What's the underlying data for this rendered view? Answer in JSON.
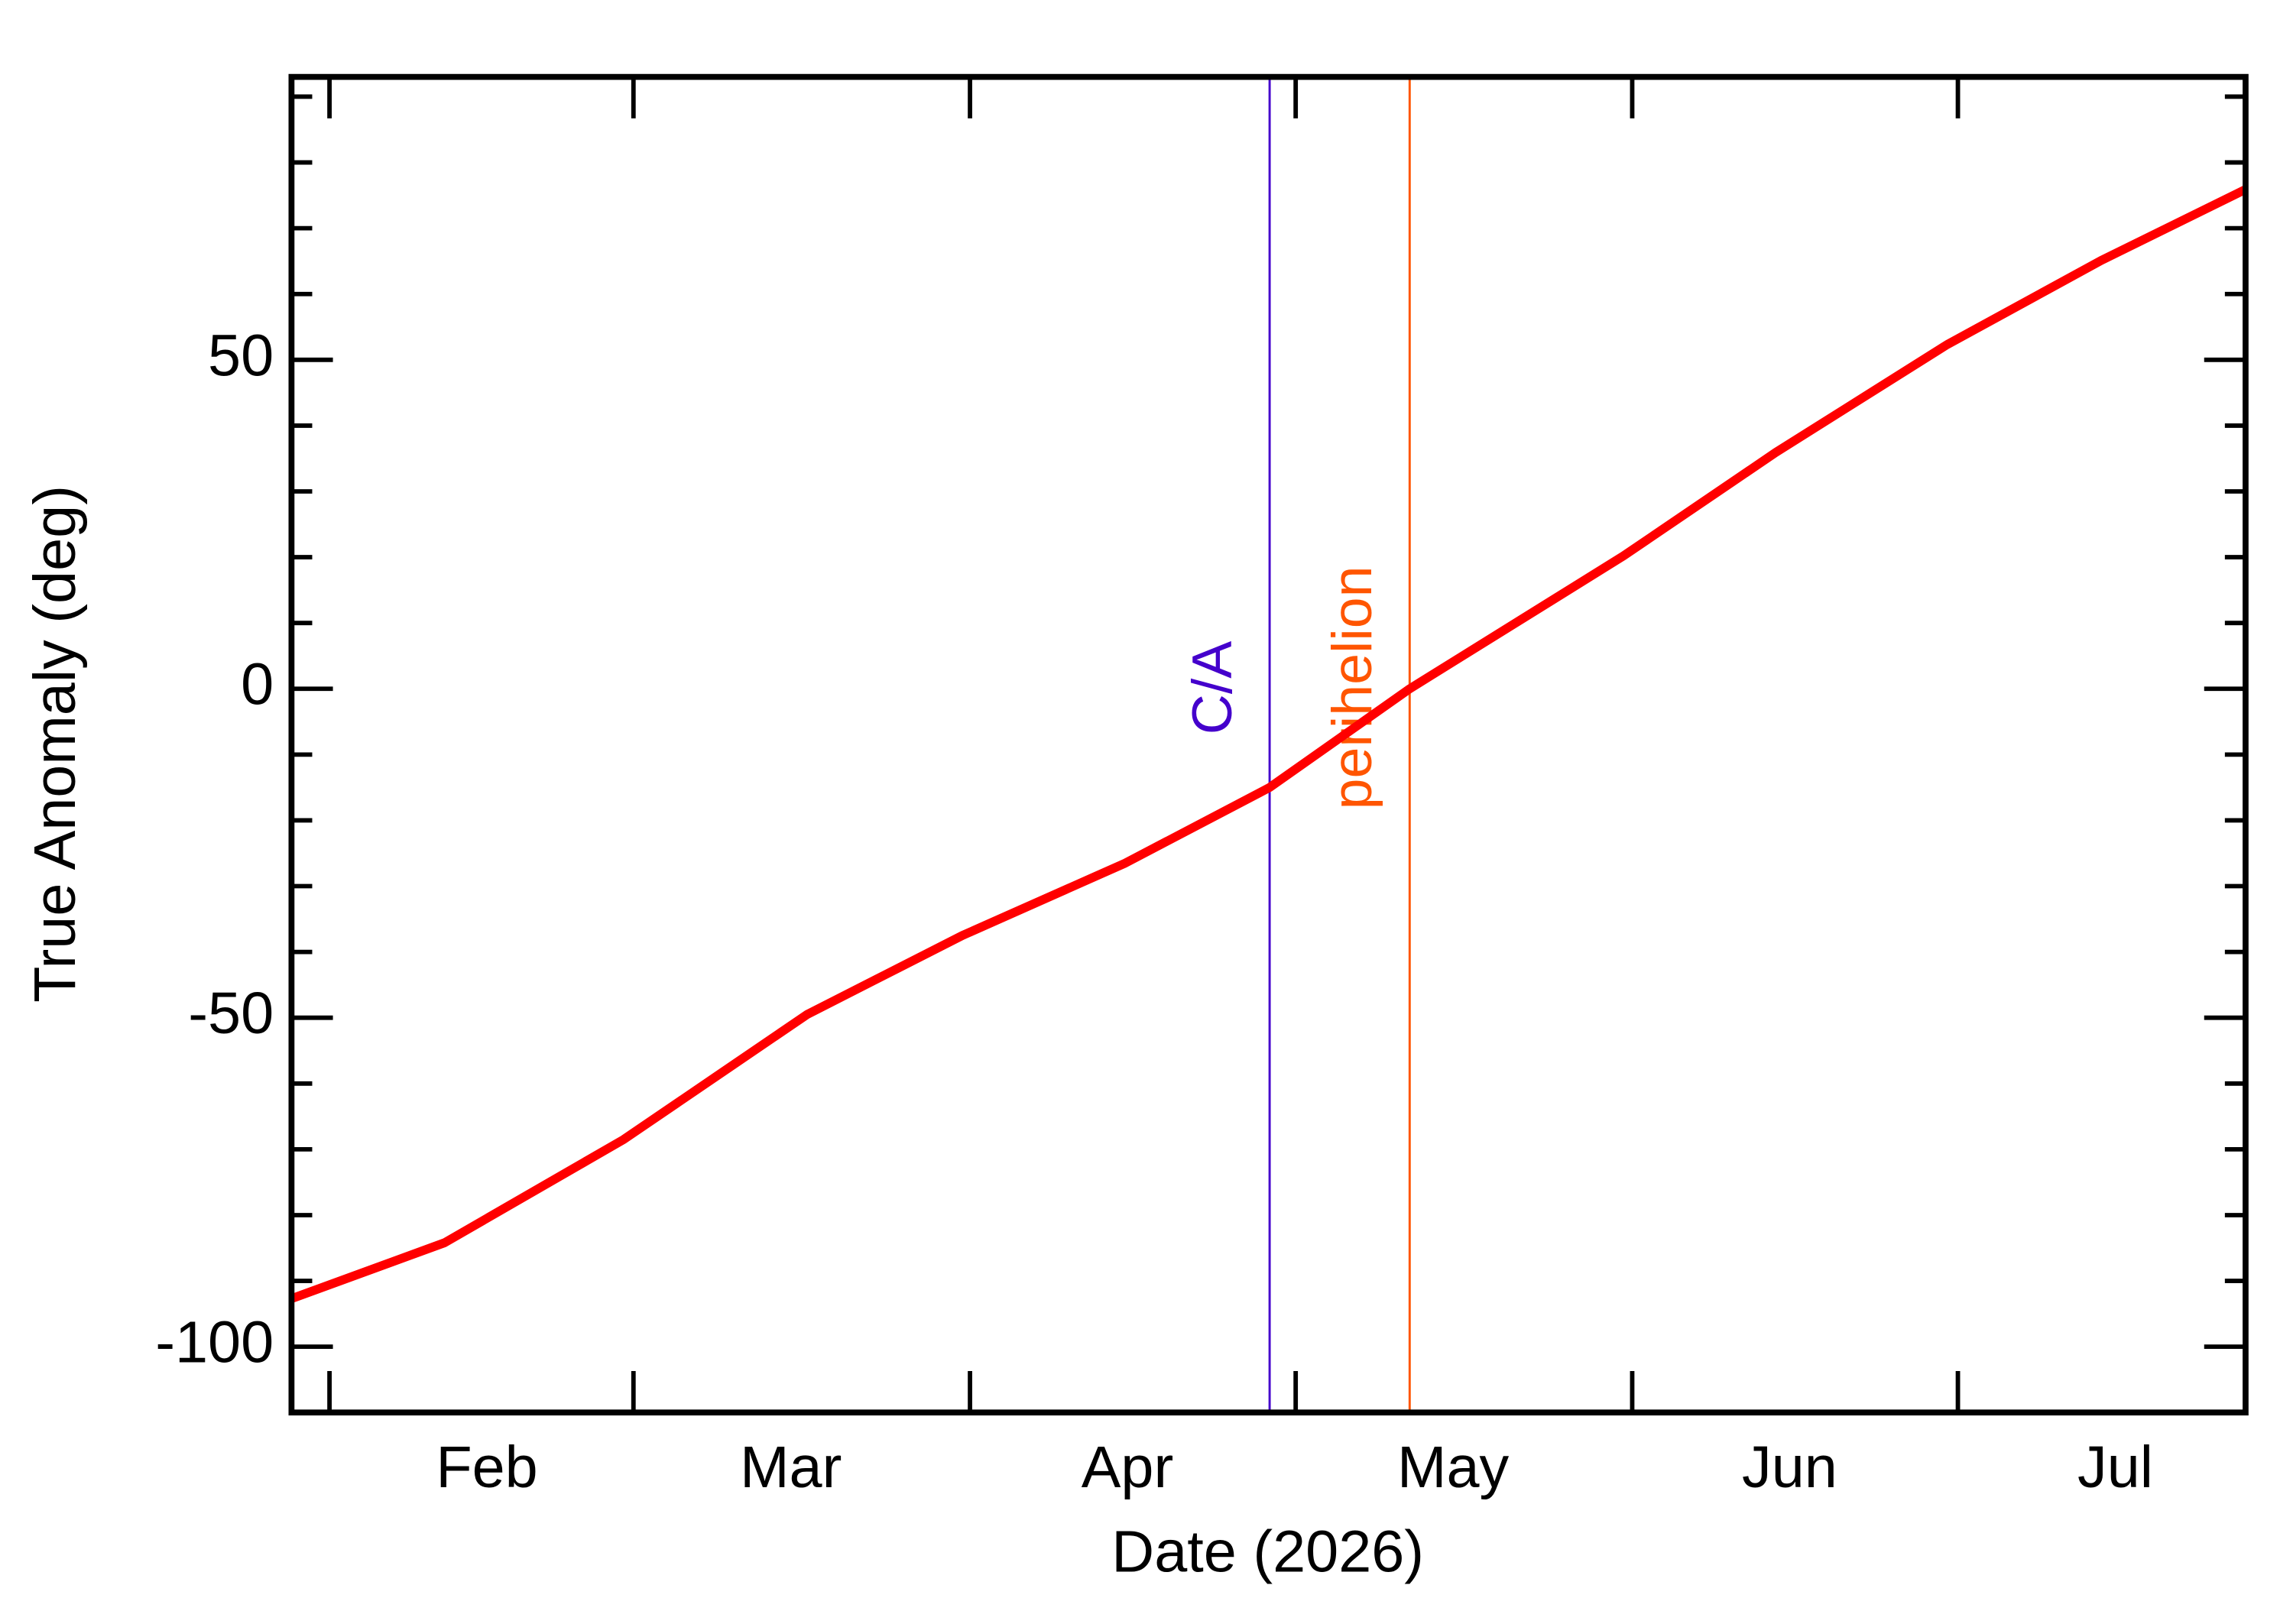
{
  "chart_data": {
    "type": "line",
    "x_label": "Date (2026)",
    "y_label": "True Anomaly (deg)",
    "xlim": [
      28.5,
      208.5
    ],
    "ylim": [
      -110,
      93
    ],
    "xticks": [
      {
        "value": 32,
        "label": "Feb"
      },
      {
        "value": 60,
        "label": "Mar"
      },
      {
        "value": 91,
        "label": "Apr"
      },
      {
        "value": 121,
        "label": "May"
      },
      {
        "value": 152,
        "label": "Jun"
      },
      {
        "value": 182,
        "label": "Jul"
      }
    ],
    "yticks": [
      -100,
      -50,
      0,
      50
    ],
    "yminor": [
      -90,
      -80,
      -70,
      -60,
      -40,
      -30,
      -20,
      -10,
      10,
      20,
      30,
      40,
      60,
      70,
      80,
      90
    ],
    "x": [
      28.5,
      42.6,
      59.1,
      76.0,
      90.3,
      105.3,
      118.6,
      131.5,
      151.2,
      165.2,
      181.0,
      195.2,
      208.5
    ],
    "series": [
      {
        "name": "True Anomaly",
        "color": "#ff0000",
        "values": [
          -92.7,
          -84.2,
          -68.5,
          -49.5,
          -37.5,
          -26.5,
          -15.0,
          0.0,
          20.2,
          35.9,
          52.3,
          65.1,
          75.9
        ]
      }
    ],
    "vlines": [
      {
        "x": 118.6,
        "label": "C/A",
        "color": "#4400cc"
      },
      {
        "x": 131.5,
        "label": "perihelion",
        "color": "#ff5500"
      }
    ]
  }
}
